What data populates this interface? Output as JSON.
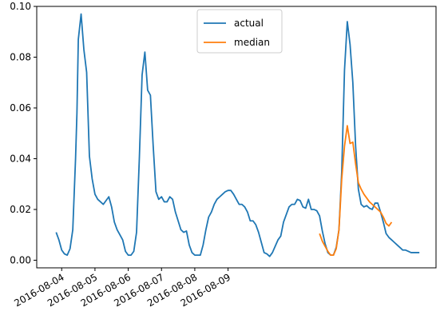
{
  "chart_data": {
    "type": "line",
    "title": "",
    "xlabel": "",
    "ylabel": "",
    "ylim": [
      -0.003,
      0.1
    ],
    "y_ticks": [
      "0.00",
      "0.02",
      "0.04",
      "0.06",
      "0.08",
      "0.10"
    ],
    "x_ticks": [
      "2016-08-04",
      "2016-08-05",
      "2016-08-06",
      "2016-08-07",
      "2016-08-08",
      "2016-08-09"
    ],
    "grid": false,
    "legend_position": "upper center",
    "series": [
      {
        "name": "actual",
        "color": "#1f77b4",
        "x_hours": [
          20,
          22,
          24,
          26,
          28,
          30,
          32,
          34,
          35,
          36,
          38,
          40,
          42,
          44,
          46,
          48,
          50,
          52,
          54,
          56,
          58,
          60,
          62,
          64,
          66,
          68,
          70,
          72,
          74,
          76,
          78,
          80,
          82,
          84,
          86,
          88,
          90,
          92,
          94,
          96,
          98,
          100,
          102,
          104,
          106,
          108,
          110,
          112,
          114,
          116,
          118,
          120,
          122,
          124,
          126,
          128,
          130,
          132,
          134,
          136,
          138,
          140,
          142,
          144,
          146,
          148,
          150,
          152,
          154,
          156,
          158,
          160,
          162,
          164,
          166,
          168,
          170,
          172,
          174,
          176,
          178,
          180,
          182,
          184,
          186,
          188,
          190,
          192,
          194,
          196,
          198,
          200,
          202,
          204,
          206,
          208,
          210,
          212,
          214,
          216,
          218,
          220,
          222,
          224,
          226,
          228,
          230,
          232,
          234,
          236,
          238,
          240,
          242,
          244,
          246,
          248,
          250,
          252,
          254,
          256,
          258,
          260,
          262,
          264,
          266,
          268,
          270,
          272,
          274,
          276,
          278,
          280,
          282
        ],
        "values": [
          0.011,
          0.008,
          0.004,
          0.0025,
          0.002,
          0.0045,
          0.012,
          0.04,
          0.058,
          0.087,
          0.097,
          0.083,
          0.074,
          0.041,
          0.032,
          0.026,
          0.024,
          0.023,
          0.022,
          0.0235,
          0.025,
          0.021,
          0.015,
          0.012,
          0.01,
          0.008,
          0.0035,
          0.002,
          0.002,
          0.0035,
          0.011,
          0.04,
          0.073,
          0.082,
          0.067,
          0.065,
          0.045,
          0.027,
          0.024,
          0.025,
          0.023,
          0.023,
          0.025,
          0.024,
          0.019,
          0.0155,
          0.012,
          0.011,
          0.0115,
          0.006,
          0.003,
          0.002,
          0.002,
          0.002,
          0.006,
          0.012,
          0.017,
          0.019,
          0.022,
          0.024,
          0.025,
          0.026,
          0.027,
          0.0275,
          0.0275,
          0.026,
          0.024,
          0.022,
          0.022,
          0.021,
          0.019,
          0.0155,
          0.0155,
          0.014,
          0.011,
          0.007,
          0.003,
          0.0025,
          0.0015,
          0.003,
          0.0055,
          0.008,
          0.0095,
          0.015,
          0.018,
          0.021,
          0.022,
          0.022,
          0.024,
          0.0235,
          0.021,
          0.0205,
          0.024,
          0.02,
          0.02,
          0.0195,
          0.0175,
          0.0115,
          0.0065,
          0.003,
          0.002,
          0.002,
          0.005,
          0.012,
          0.035,
          0.075,
          0.094,
          0.085,
          0.07,
          0.045,
          0.028,
          0.022,
          0.021,
          0.0215,
          0.0205,
          0.02,
          0.0225,
          0.0225,
          0.019,
          0.015,
          0.0105,
          0.009,
          0.008,
          0.007,
          0.006,
          0.005,
          0.004,
          0.004,
          0.0035,
          0.003,
          0.003,
          0.003,
          0.003
        ],
        "trim_after_hour": 284
      },
      {
        "name": "median",
        "color": "#ff7f0e",
        "x_hours": [
          210,
          212,
          214,
          216,
          218,
          220,
          222,
          224,
          226,
          228,
          230,
          232,
          234,
          236,
          238,
          240,
          242,
          244,
          246,
          248,
          250,
          252,
          254,
          256,
          258,
          260,
          262
        ],
        "values": [
          0.0105,
          0.0075,
          0.0055,
          0.0035,
          0.002,
          0.002,
          0.0045,
          0.012,
          0.032,
          0.045,
          0.053,
          0.046,
          0.0465,
          0.038,
          0.0305,
          0.028,
          0.026,
          0.0245,
          0.023,
          0.022,
          0.021,
          0.02,
          0.019,
          0.017,
          0.0145,
          0.0135,
          0.015
        ]
      }
    ]
  }
}
